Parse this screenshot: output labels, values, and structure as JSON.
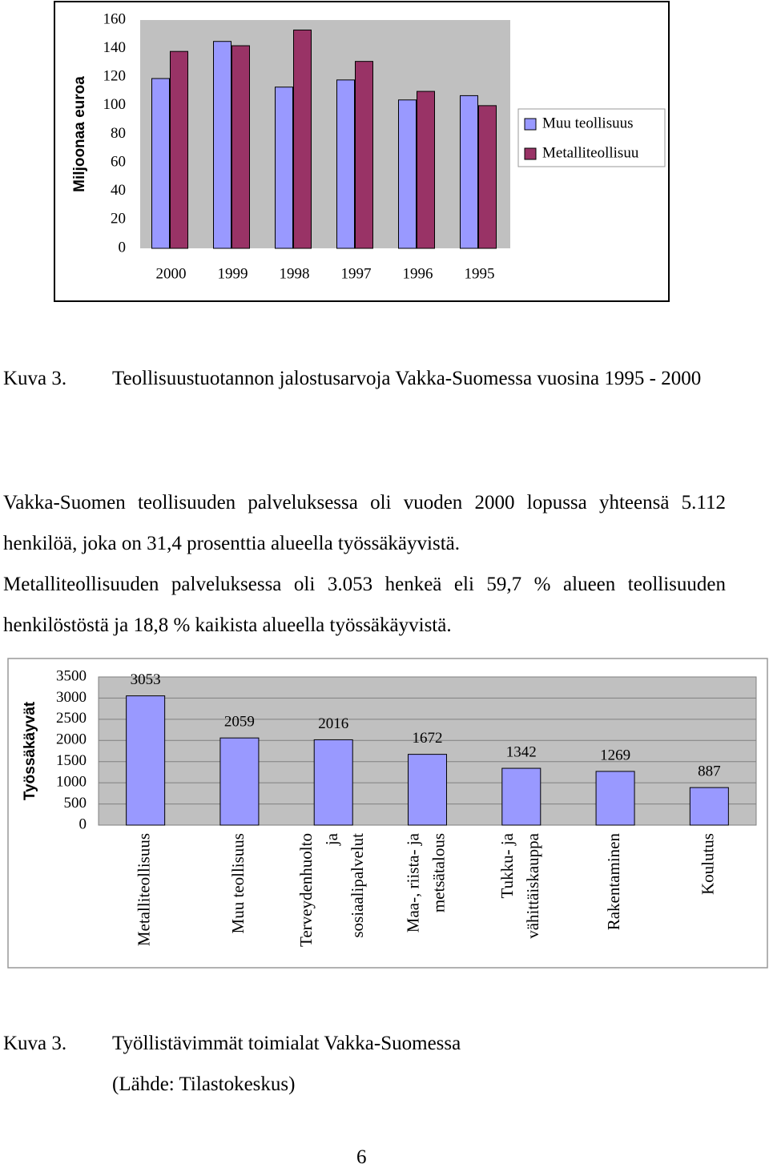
{
  "chart_data": [
    {
      "type": "bar",
      "y_label": "Miljoonaa euroa",
      "categories": [
        "2000",
        "1999",
        "1998",
        "1997",
        "1996",
        "1995"
      ],
      "series": [
        {
          "name": "Muu teollisuus",
          "color": "#9999ff",
          "values": [
            119,
            145,
            113,
            118,
            104,
            107
          ]
        },
        {
          "name": "Metalliteollisuu",
          "color": "#993366",
          "values": [
            138,
            142,
            153,
            131,
            110,
            100
          ]
        }
      ],
      "ylim": [
        0,
        160
      ],
      "yticks": [
        0,
        20,
        40,
        60,
        80,
        100,
        120,
        140,
        160
      ],
      "grid": false,
      "legend": "right"
    },
    {
      "type": "bar",
      "y_label": "Työssäkäyvät",
      "categories": [
        "Metalliteollisuus",
        "Muu teollisuus",
        "Terveydenhuolto ja sosiaalipalvelut",
        "Maa-, riista- ja metsätalous",
        "Tukku- ja vähittäiskauppa",
        "Rakentaminen",
        "Koulutus"
      ],
      "values": [
        3053,
        2059,
        2016,
        1672,
        1342,
        1269,
        887
      ],
      "color": "#9999ff",
      "ylim": [
        0,
        3500
      ],
      "yticks": [
        0,
        500,
        1000,
        1500,
        2000,
        2500,
        3000,
        3500
      ],
      "grid": true
    }
  ],
  "caption1": {
    "label": "Kuva 3.",
    "text": "Teollisuustuotannon jalostusarvoja Vakka-Suomessa vuosina 1995 - 2000"
  },
  "paragraph": [
    "Vakka-Suomen teollisuuden palveluksessa oli vuoden 2000 lopussa yhteensä 5.112 henkilöä, joka on 31,4 prosenttia alueella työssäkäyvistä.",
    "Metalliteollisuuden palveluksessa oli 3.053 henkeä eli 59,7 % alueen teollisuuden henkilöstöstä ja 18,8 % kaikista alueella työssäkäyvistä."
  ],
  "caption2": {
    "label": "Kuva 3.",
    "text": "Työllistävimmät toimialat Vakka-Suomessa",
    "source": "(Lähde: Tilastokeskus)"
  },
  "page_number": "6"
}
